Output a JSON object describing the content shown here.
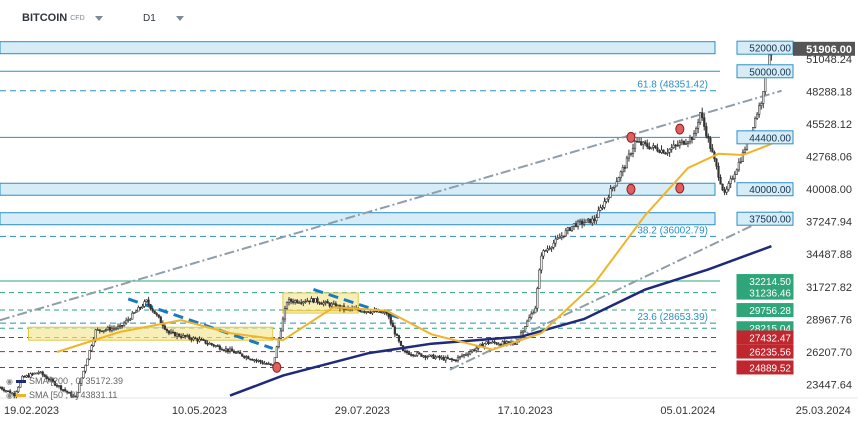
{
  "header": {
    "symbol": "BITCOIN",
    "instrument_type": "CFD",
    "timeframe": "D1"
  },
  "colors": {
    "candle": "#333333",
    "sma200": "#1f2a7a",
    "sma50": "#f0b429",
    "channel": "#8e9eab",
    "zone_fill": "#d6ecf7",
    "zone_border": "#2b8fc4",
    "level_green": "#2fa57a",
    "level_red": "#c0262d",
    "level_blue": "#2b8fc4",
    "support_box": "#f5e79a",
    "trend_dash": "#1a7ac0",
    "price_tag": "#555555"
  },
  "indicators": [
    {
      "label": "SMA [200 , 0] 35172.39",
      "color": "#1f2a7a"
    },
    {
      "label": "SMA [50 , 0] 43831.11",
      "color": "#f0b429"
    }
  ],
  "chart_data": {
    "type": "candlestick",
    "xlabel": "",
    "ylabel": "",
    "x_range": [
      "2023-02-01",
      "2024-03-31"
    ],
    "ylim": [
      22300,
      53500
    ],
    "x_ticks": [
      "19.02.2023",
      "10.05.2023",
      "29.07.2023",
      "17.10.2023",
      "05.01.2024",
      "25.03.2024"
    ],
    "y_ticks": [
      "51048.24",
      "48288.18",
      "45528.12",
      "42768.06",
      "40008.00",
      "37247.94",
      "34487.88",
      "31727.82",
      "28967.76",
      "26207.70",
      "23447.64"
    ],
    "current_price": "51906.00",
    "price_path": [
      [
        "2023-02-01",
        23200
      ],
      [
        "2023-02-08",
        22600
      ],
      [
        "2023-02-12",
        24000
      ],
      [
        "2023-02-20",
        24500
      ],
      [
        "2023-03-10",
        22300
      ],
      [
        "2023-03-20",
        28000
      ],
      [
        "2023-04-01",
        28300
      ],
      [
        "2023-04-14",
        30500
      ],
      [
        "2023-04-25",
        27800
      ],
      [
        "2023-05-10",
        27200
      ],
      [
        "2023-05-25",
        26300
      ],
      [
        "2023-06-15",
        25000
      ],
      [
        "2023-06-22",
        30500
      ],
      [
        "2023-07-05",
        30600
      ],
      [
        "2023-07-20",
        29900
      ],
      [
        "2023-08-10",
        29500
      ],
      [
        "2023-08-18",
        26200
      ],
      [
        "2023-09-01",
        25800
      ],
      [
        "2023-09-12",
        25500
      ],
      [
        "2023-09-28",
        27000
      ],
      [
        "2023-10-12",
        26900
      ],
      [
        "2023-10-22",
        30000
      ],
      [
        "2023-10-25",
        34500
      ],
      [
        "2023-11-10",
        37000
      ],
      [
        "2023-11-20",
        37400
      ],
      [
        "2023-12-05",
        42000
      ],
      [
        "2023-12-10",
        44000
      ],
      [
        "2023-12-25",
        43200
      ],
      [
        "2024-01-08",
        44500
      ],
      [
        "2024-01-11",
        46500
      ],
      [
        "2024-01-23",
        39500
      ],
      [
        "2024-02-01",
        43000
      ],
      [
        "2024-02-10",
        47500
      ],
      [
        "2024-02-14",
        51600
      ],
      [
        "2024-02-15",
        51906
      ]
    ],
    "series": [
      {
        "name": "SMA [200 , 0] 35172.39",
        "points": [
          [
            "2023-05-25",
            22500
          ],
          [
            "2023-06-20",
            24200
          ],
          [
            "2023-08-01",
            26100
          ],
          [
            "2023-09-01",
            26900
          ],
          [
            "2023-10-15",
            27500
          ],
          [
            "2023-11-15",
            29000
          ],
          [
            "2023-12-15",
            31500
          ],
          [
            "2024-01-15",
            33200
          ],
          [
            "2024-02-15",
            35172
          ]
        ]
      },
      {
        "name": "SMA [50 , 0] 43831.11",
        "points": [
          [
            "2023-03-01",
            26200
          ],
          [
            "2023-04-01",
            27900
          ],
          [
            "2023-05-01",
            28900
          ],
          [
            "2023-05-25",
            27800
          ],
          [
            "2023-06-20",
            27200
          ],
          [
            "2023-07-15",
            30000
          ],
          [
            "2023-08-10",
            29700
          ],
          [
            "2023-09-01",
            27700
          ],
          [
            "2023-10-01",
            26400
          ],
          [
            "2023-10-25",
            27800
          ],
          [
            "2023-11-20",
            32000
          ],
          [
            "2023-12-15",
            37800
          ],
          [
            "2024-01-05",
            41800
          ],
          [
            "2024-01-20",
            43000
          ],
          [
            "2024-02-01",
            42900
          ],
          [
            "2024-02-15",
            43831
          ]
        ]
      }
    ],
    "levels": [
      {
        "label": "52000.00",
        "value": 52000,
        "style": "zone",
        "color": "#2b8fc4"
      },
      {
        "label": "50000.00",
        "value": 50000,
        "style": "solid",
        "color": "#2b8fc4"
      },
      {
        "label": "44400.00",
        "value": 44400,
        "style": "solid",
        "color": "#2b8fc4"
      },
      {
        "label": "40000.00",
        "value": 40000,
        "style": "zone",
        "color": "#2b8fc4"
      },
      {
        "label": "37500.00",
        "value": 37500,
        "style": "zone",
        "color": "#2b8fc4"
      },
      {
        "label": "32214.50",
        "value": 32214.5,
        "style": "solid",
        "color": "#2fa57a"
      },
      {
        "label": "31236.46",
        "value": 31236.46,
        "style": "dash",
        "color": "#2fa57a"
      },
      {
        "label": "29756.28",
        "value": 29756.28,
        "style": "dash",
        "color": "#2fa57a"
      },
      {
        "label": "28215.04",
        "value": 28215.04,
        "style": "dash",
        "color": "#2fa57a"
      },
      {
        "label": "27432.47",
        "value": 27432.47,
        "style": "dash",
        "color": "#c0262d"
      },
      {
        "label": "26235.56",
        "value": 26235.56,
        "style": "dash",
        "color": "#c0262d"
      },
      {
        "label": "24889.52",
        "value": 24889.52,
        "style": "dash",
        "color": "#c0262d"
      }
    ],
    "fib_levels": [
      {
        "label": "61.8 (48351.42)",
        "value": 48351.42
      },
      {
        "label": "38.2 (36002.79)",
        "value": 36002.79
      },
      {
        "label": "23.6 (28653.39)",
        "value": 28653.39
      }
    ],
    "channel_lines": [
      {
        "style": "dash-dot",
        "from": [
          "2023-02-01",
          28900
        ],
        "to": [
          "2024-02-20",
          48350
        ]
      },
      {
        "style": "dash-dot",
        "from": [
          "2023-09-10",
          24700
        ],
        "to": [
          "2024-02-20",
          38100
        ]
      }
    ],
    "trend_lines": [
      {
        "from": [
          "2023-04-05",
          30700
        ],
        "to": [
          "2023-06-15",
          26500
        ]
      },
      {
        "from": [
          "2023-07-05",
          31500
        ],
        "to": [
          "2023-08-18",
          29000
        ]
      }
    ],
    "support_boxes": [
      {
        "x0": "2023-02-15",
        "x1": "2023-06-15",
        "y0": 27200,
        "y1": 28300
      },
      {
        "x0": "2023-06-20",
        "x1": "2023-07-27",
        "y0": 29700,
        "y1": 31200
      },
      {
        "x0": "2023-06-20",
        "x1": "2023-07-27",
        "y0": 29500,
        "y1": 29700
      }
    ],
    "markers": [
      [
        "2023-12-08",
        44400
      ],
      [
        "2024-01-01",
        45100
      ],
      [
        "2023-12-08",
        40000
      ],
      [
        "2024-01-01",
        40100
      ],
      [
        "2023-06-17",
        24900
      ]
    ]
  }
}
